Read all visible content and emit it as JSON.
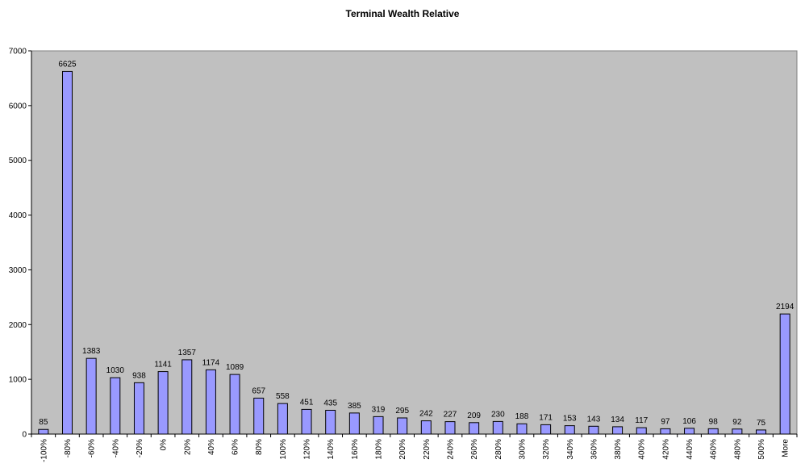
{
  "chart_data": {
    "type": "bar",
    "title": "Terminal Wealth Relative",
    "xlabel": "",
    "ylabel": "",
    "ylim": [
      0,
      7000
    ],
    "yticks": [
      "0",
      "1000",
      "2000",
      "3000",
      "4000",
      "5000",
      "6000",
      "7000"
    ],
    "grid": false,
    "legend": "none",
    "categories": [
      "-100%",
      "-80%",
      "-60%",
      "-40%",
      "-20%",
      "0%",
      "20%",
      "40%",
      "60%",
      "80%",
      "100%",
      "120%",
      "140%",
      "160%",
      "180%",
      "200%",
      "220%",
      "240%",
      "260%",
      "280%",
      "300%",
      "320%",
      "340%",
      "360%",
      "380%",
      "400%",
      "420%",
      "440%",
      "460%",
      "480%",
      "500%",
      "More"
    ],
    "values": [
      85,
      6625,
      1383,
      1030,
      938,
      1141,
      1357,
      1174,
      1089,
      657,
      558,
      451,
      435,
      385,
      319,
      295,
      242,
      227,
      209,
      230,
      188,
      171,
      153,
      143,
      134,
      117,
      97,
      106,
      98,
      92,
      75,
      2194
    ],
    "data_labels": [
      "85",
      "6625",
      "1383",
      "1030",
      "938",
      "1141",
      "1357",
      "1174",
      "1089",
      "657",
      "558",
      "451",
      "435",
      "385",
      "319",
      "295",
      "242",
      "227",
      "209",
      "230",
      "188",
      "171",
      "153",
      "143",
      "134",
      "117",
      "97",
      "106",
      "98",
      "92",
      "75",
      "2194"
    ],
    "colors": {
      "bar": "#9999ff",
      "bar_border": "#000000",
      "plot_background": "#c0c0c0"
    }
  }
}
